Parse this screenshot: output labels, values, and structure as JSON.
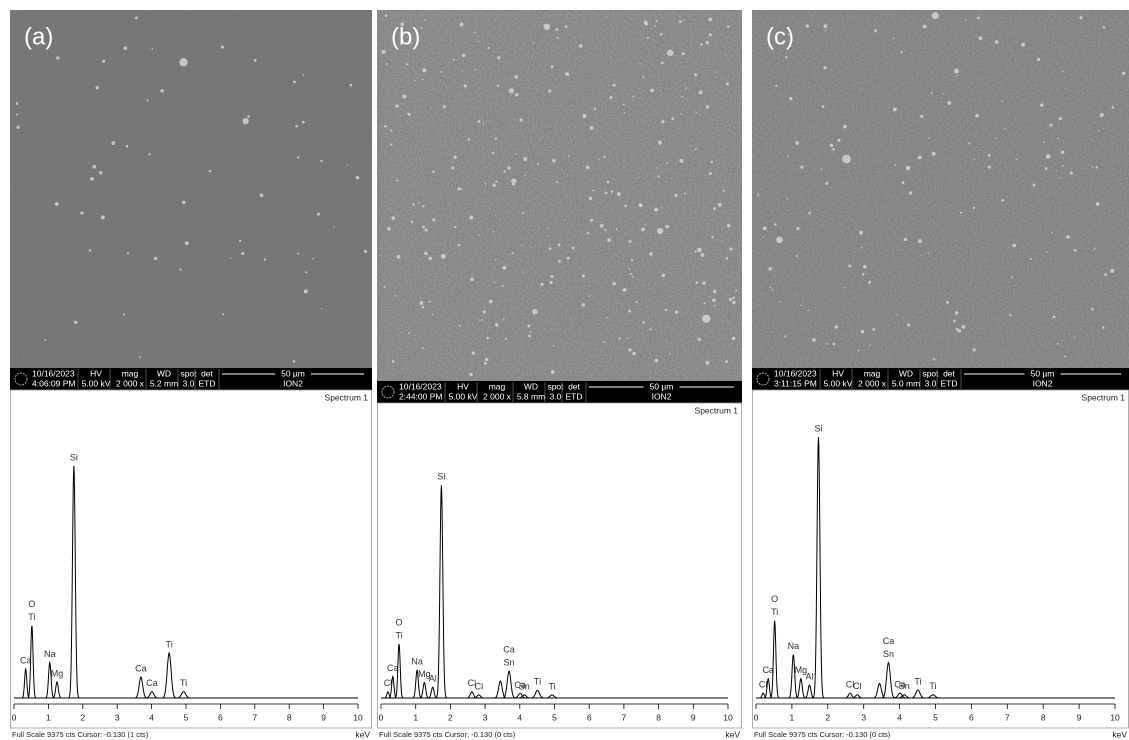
{
  "sem_headers": {
    "hv": "HV",
    "mag": "mag",
    "wd": "WD",
    "spot": "spot",
    "det": "det"
  },
  "panels": [
    {
      "label": "(a)",
      "sem": {
        "date": "10/16/2023",
        "time": "4:06:09 PM",
        "hv": "5.00 kV",
        "mag": "2 000 x",
        "wd": "5.2 mm",
        "spot": "3.0",
        "det": "ETD",
        "scale": "50 µm",
        "mode": "ION2"
      },
      "spectrum": {
        "title": "Spectrum 1",
        "xlim": [
          0,
          10
        ],
        "xticks": [
          0,
          1,
          2,
          3,
          4,
          5,
          6,
          7,
          8,
          9,
          10
        ],
        "unit": "keV",
        "footer": "Full Scale 9375 cts Cursor: -0.130  (1 cts)",
        "ylim": [
          0,
          9375
        ],
        "peaks": [
          {
            "labels": [
              "Ca"
            ],
            "x": 0.34,
            "y": 900
          },
          {
            "labels": [
              "O",
              "Ti"
            ],
            "x": 0.52,
            "y": 2250
          },
          {
            "labels": [
              "Na"
            ],
            "x": 1.04,
            "y": 1100
          },
          {
            "labels": [
              "Mg"
            ],
            "x": 1.25,
            "y": 500
          },
          {
            "labels": [
              "Si"
            ],
            "x": 1.74,
            "y": 7200
          },
          {
            "labels": [
              "Ca"
            ],
            "x": 3.69,
            "y": 650
          },
          {
            "labels": [
              "Ca"
            ],
            "x": 4.01,
            "y": 200
          },
          {
            "labels": [
              "Ti"
            ],
            "x": 4.51,
            "y": 1400
          },
          {
            "labels": [
              "Ti"
            ],
            "x": 4.93,
            "y": 200
          }
        ]
      }
    },
    {
      "label": "(b)",
      "sem": {
        "date": "10/16/2023",
        "time": "2:44:00 PM",
        "hv": "5.00 kV",
        "mag": "2 000 x",
        "wd": "5.8 mm",
        "spot": "3.0",
        "det": "ETD",
        "scale": "50 µm",
        "mode": "ION2"
      },
      "spectrum": {
        "title": "Spectrum 1",
        "xlim": [
          0,
          10
        ],
        "xticks": [
          0,
          1,
          2,
          3,
          4,
          5,
          6,
          7,
          8,
          9,
          10
        ],
        "unit": "keV",
        "footer": "Full Scale 9375 cts Cursor: -0.130  (0 cts)",
        "ylim": [
          0,
          9375
        ],
        "peaks": [
          {
            "labels": [
              "Cl"
            ],
            "x": 0.2,
            "y": 200
          },
          {
            "labels": [
              "Ca"
            ],
            "x": 0.34,
            "y": 700
          },
          {
            "labels": [
              "O",
              "Ti"
            ],
            "x": 0.52,
            "y": 1750
          },
          {
            "labels": [
              "Na"
            ],
            "x": 1.04,
            "y": 900
          },
          {
            "labels": [
              "Mg"
            ],
            "x": 1.25,
            "y": 500
          },
          {
            "labels": [
              "Al"
            ],
            "x": 1.49,
            "y": 350
          },
          {
            "labels": [
              "Si"
            ],
            "x": 1.74,
            "y": 6900
          },
          {
            "labels": [
              "Cl"
            ],
            "x": 2.62,
            "y": 200
          },
          {
            "labels": [
              "Cl"
            ],
            "x": 2.82,
            "y": 100
          },
          {
            "labels": [],
            "x": 3.44,
            "y": 550
          },
          {
            "labels": [
              "Ca",
              "Sn"
            ],
            "x": 3.69,
            "y": 870
          },
          {
            "labels": [
              "Ca"
            ],
            "x": 4.01,
            "y": 150
          },
          {
            "labels": [
              "Sn"
            ],
            "x": 4.13,
            "y": 100
          },
          {
            "labels": [
              "Ti"
            ],
            "x": 4.51,
            "y": 250
          },
          {
            "labels": [
              "Ti"
            ],
            "x": 4.93,
            "y": 100
          }
        ]
      }
    },
    {
      "label": "(c)",
      "sem": {
        "date": "10/16/2023",
        "time": "3:11:15 PM",
        "hv": "5.00 kV",
        "mag": "2 000 x",
        "wd": "5.0 mm",
        "spot": "3.0",
        "det": "ETD",
        "scale": "50 µm",
        "mode": "ION2"
      },
      "spectrum": {
        "title": "Spectrum 1",
        "xlim": [
          0,
          10
        ],
        "xticks": [
          0,
          1,
          2,
          3,
          4,
          5,
          6,
          7,
          8,
          9,
          10
        ],
        "unit": "keV",
        "footer": "Full Scale 9375 cts Cursor: -0.130  (0 cts)",
        "ylim": [
          0,
          9375
        ],
        "peaks": [
          {
            "labels": [
              "Cl"
            ],
            "x": 0.2,
            "y": 150
          },
          {
            "labels": [
              "Ca"
            ],
            "x": 0.34,
            "y": 600
          },
          {
            "labels": [
              "O",
              "Ti"
            ],
            "x": 0.52,
            "y": 2400
          },
          {
            "labels": [
              "Na"
            ],
            "x": 1.04,
            "y": 1350
          },
          {
            "labels": [
              "Mg"
            ],
            "x": 1.25,
            "y": 600
          },
          {
            "labels": [
              "Al"
            ],
            "x": 1.49,
            "y": 400
          },
          {
            "labels": [
              "Si"
            ],
            "x": 1.74,
            "y": 8100
          },
          {
            "labels": [
              "Cl"
            ],
            "x": 2.62,
            "y": 150
          },
          {
            "labels": [
              "Cl"
            ],
            "x": 2.82,
            "y": 100
          },
          {
            "labels": [],
            "x": 3.44,
            "y": 450
          },
          {
            "labels": [
              "Ca",
              "Sn"
            ],
            "x": 3.69,
            "y": 1100
          },
          {
            "labels": [
              "Ca"
            ],
            "x": 4.01,
            "y": 150
          },
          {
            "labels": [
              "Sn"
            ],
            "x": 4.13,
            "y": 100
          },
          {
            "labels": [
              "Ti"
            ],
            "x": 4.51,
            "y": 250
          },
          {
            "labels": [
              "Ti"
            ],
            "x": 4.93,
            "y": 100
          }
        ]
      }
    }
  ]
}
